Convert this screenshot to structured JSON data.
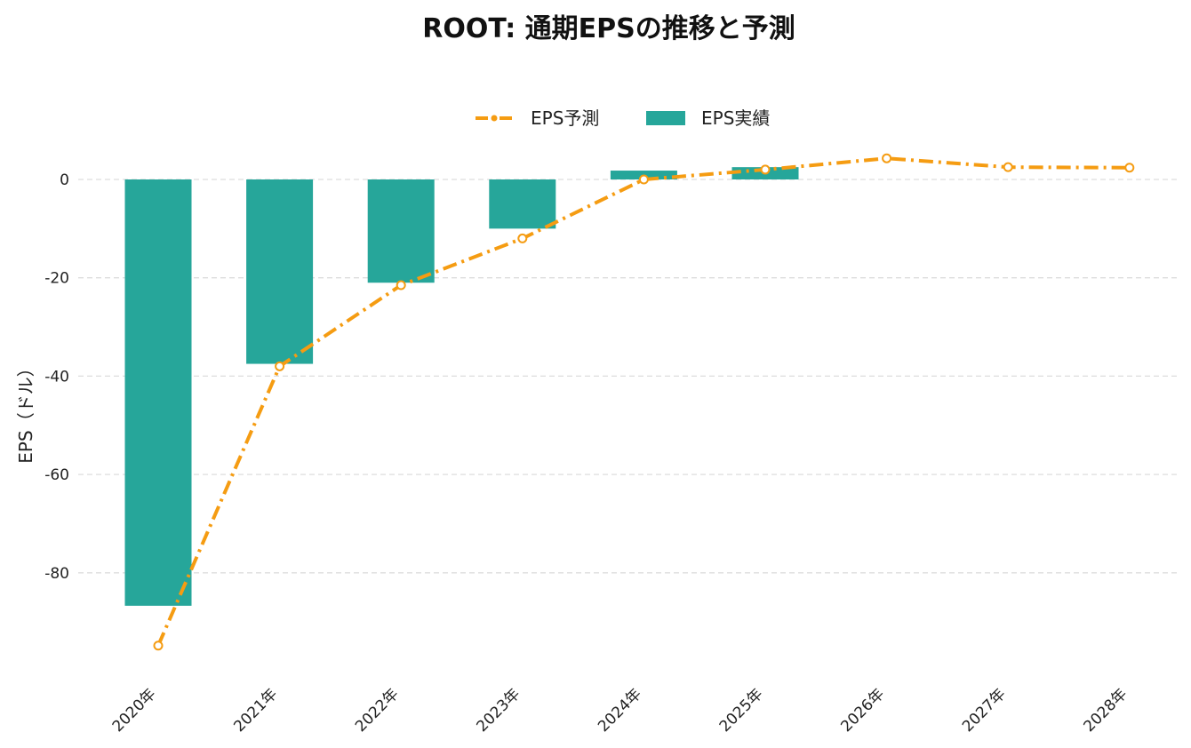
{
  "chart_data": {
    "type": "bar",
    "title": "ROOT: 通期EPSの推移と予測",
    "ylabel": "EPS（ドル）",
    "xlabel": "",
    "categories": [
      "2020年",
      "2021年",
      "2022年",
      "2023年",
      "2024年",
      "2025年",
      "2026年",
      "2027年",
      "2028年"
    ],
    "ylim": [
      -100,
      8
    ],
    "yticks": [
      0,
      -20,
      -40,
      -60,
      -80
    ],
    "ytick_labels": [
      "0",
      "-20",
      "-40",
      "-60",
      "-80"
    ],
    "grid": true,
    "legend_position": "top-center",
    "series": [
      {
        "name": "EPS予測",
        "type": "line",
        "style": "dashdot",
        "color": "#f59c12",
        "values": [
          -94.8,
          -38.0,
          -21.5,
          -12.0,
          0.0,
          2.0,
          4.3,
          2.5,
          2.4
        ]
      },
      {
        "name": "EPS実績",
        "type": "bar",
        "color": "#26a69a",
        "values": [
          -86.7,
          -37.5,
          -21.0,
          -10.0,
          1.8,
          2.5,
          null,
          null,
          null
        ]
      }
    ]
  }
}
